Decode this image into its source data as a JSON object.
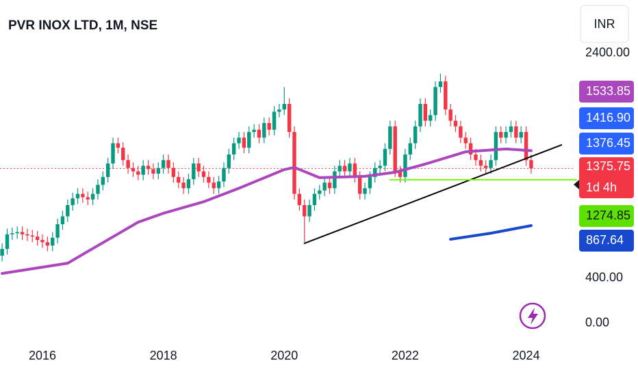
{
  "chart_data": {
    "type": "candlestick",
    "title": "PVR INOX LTD, 1M, NSE",
    "currency": "INR",
    "categories": [
      null,
      null,
      null,
      null,
      null,
      null,
      null,
      null,
      "2016",
      null,
      null,
      null,
      null,
      null,
      null,
      null,
      null,
      null,
      null,
      null,
      null,
      null,
      null,
      null,
      null,
      null,
      null,
      null,
      null,
      null,
      null,
      null,
      "2018",
      null,
      null,
      null,
      null,
      null,
      null,
      null,
      null,
      null,
      null,
      null,
      null,
      null,
      null,
      null,
      null,
      null,
      null,
      null,
      null,
      null,
      null,
      null,
      "2020",
      null,
      null,
      null,
      null,
      null,
      null,
      null,
      null,
      null,
      null,
      null,
      null,
      null,
      null,
      null,
      null,
      null,
      null,
      null,
      null,
      null,
      null,
      null,
      "2022",
      null,
      null,
      null,
      null,
      null,
      null,
      null,
      null,
      null,
      null,
      null,
      null,
      null,
      null,
      null,
      null,
      null,
      null,
      null,
      null,
      null,
      null,
      null,
      "2024",
      null
    ],
    "open": [
      600,
      660,
      790,
      800,
      810,
      790,
      780,
      770,
      740,
      720,
      690,
      760,
      880,
      950,
      1050,
      1110,
      1150,
      1120,
      1100,
      1150,
      1230,
      1300,
      1420,
      1600,
      1560,
      1450,
      1380,
      1350,
      1320,
      1400,
      1370,
      1330,
      1380,
      1450,
      1380,
      1300,
      1250,
      1200,
      1280,
      1420,
      1350,
      1300,
      1250,
      1200,
      1260,
      1380,
      1500,
      1600,
      1650,
      1560,
      1700,
      1720,
      1650,
      1780,
      1720,
      1880,
      1900,
      1950,
      1700,
      1150,
      1050,
      950,
      1050,
      1150,
      1180,
      1250,
      1200,
      1350,
      1400,
      1350,
      1420,
      1300,
      1150,
      1200,
      1300,
      1380,
      1400,
      1550,
      1750,
      1350,
      1300,
      1500,
      1600,
      1750,
      1950,
      1800,
      1850,
      2100,
      2150,
      1900,
      1800,
      1750,
      1650,
      1600,
      1500,
      1450,
      1400,
      1380,
      1450,
      1700,
      1650,
      1700,
      1750,
      1650,
      1700,
      1450
    ],
    "high": [
      710,
      840,
      850,
      860,
      860,
      840,
      830,
      820,
      790,
      770,
      810,
      930,
      1000,
      1100,
      1160,
      1200,
      1200,
      1170,
      1200,
      1280,
      1350,
      1470,
      1650,
      1650,
      1610,
      1500,
      1430,
      1400,
      1450,
      1450,
      1420,
      1430,
      1500,
      1500,
      1430,
      1350,
      1300,
      1330,
      1470,
      1470,
      1400,
      1350,
      1300,
      1310,
      1430,
      1550,
      1650,
      1700,
      1700,
      1750,
      1770,
      1770,
      1830,
      1830,
      1930,
      1950,
      2100,
      2000,
      1750,
      1200,
      1100,
      1100,
      1200,
      1230,
      1300,
      1300,
      1400,
      1450,
      1450,
      1470,
      1470,
      1350,
      1250,
      1350,
      1430,
      1450,
      1600,
      1800,
      1800,
      1400,
      1550,
      1650,
      1800,
      2000,
      2000,
      1900,
      2150,
      2220,
      2200,
      1950,
      1850,
      1800,
      1700,
      1650,
      1550,
      1500,
      1450,
      1500,
      1750,
      1750,
      1750,
      1800,
      1800,
      1750,
      1750,
      1500
    ],
    "low": [
      550,
      610,
      740,
      750,
      740,
      730,
      720,
      690,
      670,
      640,
      640,
      710,
      830,
      900,
      1000,
      1060,
      1070,
      1050,
      1050,
      1100,
      1180,
      1250,
      1370,
      1510,
      1400,
      1330,
      1300,
      1270,
      1270,
      1320,
      1280,
      1280,
      1330,
      1330,
      1250,
      1200,
      1150,
      1150,
      1230,
      1300,
      1250,
      1200,
      1150,
      1150,
      1210,
      1330,
      1450,
      1550,
      1510,
      1510,
      1650,
      1600,
      1600,
      1670,
      1670,
      1830,
      1850,
      1650,
      1100,
      1000,
      720,
      900,
      1000,
      1100,
      1130,
      1150,
      1150,
      1300,
      1300,
      1300,
      1250,
      1100,
      1100,
      1150,
      1250,
      1330,
      1350,
      1500,
      1300,
      1250,
      1250,
      1450,
      1550,
      1700,
      1750,
      1750,
      1800,
      2050,
      1850,
      1750,
      1700,
      1600,
      1550,
      1450,
      1400,
      1350,
      1330,
      1330,
      1400,
      1600,
      1600,
      1650,
      1600,
      1600,
      1400,
      1330
    ],
    "close": [
      660,
      790,
      800,
      810,
      790,
      780,
      770,
      740,
      720,
      690,
      760,
      880,
      950,
      1050,
      1110,
      1150,
      1120,
      1100,
      1150,
      1230,
      1300,
      1420,
      1600,
      1560,
      1450,
      1380,
      1350,
      1320,
      1400,
      1370,
      1330,
      1380,
      1450,
      1380,
      1300,
      1250,
      1200,
      1280,
      1420,
      1350,
      1300,
      1250,
      1200,
      1260,
      1380,
      1500,
      1600,
      1650,
      1560,
      1700,
      1720,
      1650,
      1780,
      1720,
      1880,
      1900,
      1950,
      1700,
      1150,
      1050,
      950,
      1050,
      1150,
      1180,
      1250,
      1200,
      1350,
      1400,
      1350,
      1420,
      1300,
      1150,
      1200,
      1300,
      1380,
      1400,
      1550,
      1750,
      1350,
      1300,
      1500,
      1600,
      1750,
      1950,
      1800,
      1850,
      2100,
      2150,
      1900,
      1800,
      1750,
      1650,
      1600,
      1500,
      1450,
      1400,
      1380,
      1450,
      1700,
      1650,
      1700,
      1750,
      1650,
      1700,
      1450,
      1375.75
    ],
    "up_color": "#089981",
    "down_color": "#f23645",
    "last_price_line": true,
    "overlays": [
      {
        "color": "#ab47bc",
        "width": 4,
        "x": [
          0,
          13,
          20,
          27,
          32,
          40,
          47,
          56,
          58,
          63,
          72,
          78,
          84,
          92,
          100,
          105
        ],
        "values": [
          442,
          533,
          716,
          898,
          977,
          1080,
          1200,
          1366,
          1385,
          1294,
          1306,
          1342,
          1415,
          1524,
          1549,
          1533.85
        ]
      },
      {
        "color": "#1848cc",
        "width": 4,
        "x": [
          89,
          97,
          105
        ],
        "values": [
          746,
          800,
          867.64
        ]
      },
      {
        "color": "#000000",
        "width": 2,
        "x": [
          60,
          111
        ],
        "values": [
          710,
          1585
        ]
      },
      {
        "color": "#76ff03",
        "width": 2,
        "x": [
          77,
          114
        ],
        "values": [
          1274.85,
          1274.85
        ]
      }
    ],
    "ylim": [
      -166,
      2874
    ],
    "yticks": [
      {
        "value": 2400,
        "label": "2400.00"
      },
      {
        "value": 400,
        "label": "400.00"
      },
      {
        "value": 0,
        "label": "0.00"
      }
    ],
    "price_labels": [
      {
        "value": 1533.85,
        "label": "1533.85",
        "color": "#ab47bc"
      },
      {
        "value": 1416.9,
        "label": "1416.90",
        "color": "#2962ff"
      },
      {
        "value": 1376.45,
        "label": "1376.45",
        "color": "#2962ff"
      },
      {
        "value": 1375.75,
        "label": "1375.75",
        "color": "#f23645",
        "countdown": "1d 4h"
      },
      {
        "value": 1274.85,
        "label": "1274.85",
        "color": "#5ee000"
      },
      {
        "value": 867.64,
        "label": "867.64",
        "color": "#1848cc"
      }
    ]
  }
}
